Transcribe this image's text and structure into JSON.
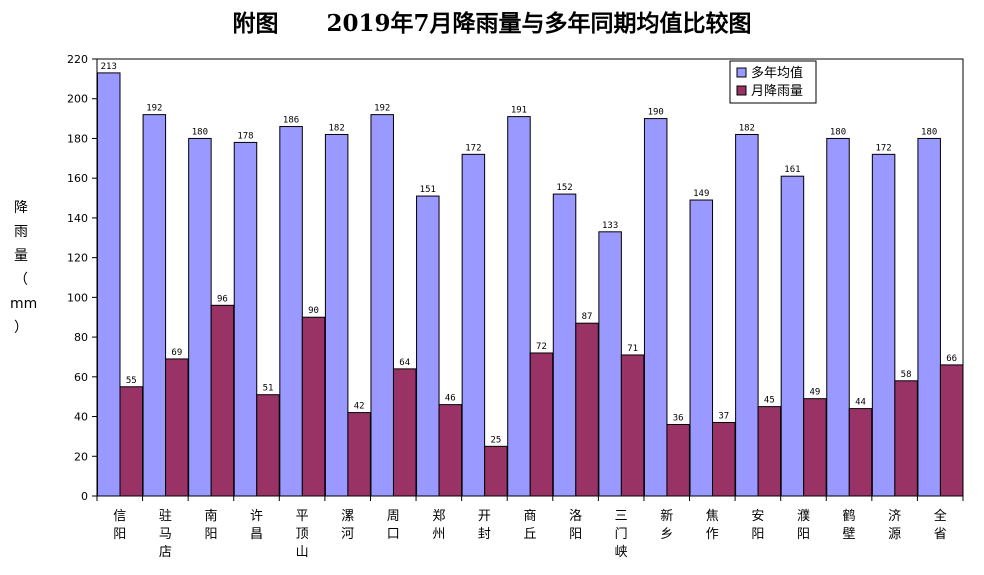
{
  "chart_data": {
    "type": "bar",
    "title": "附图      2019年7月降雨量与多年同期均值比较图",
    "ylabel_chars": [
      "降",
      "雨",
      "量",
      "（",
      "mm",
      "）"
    ],
    "xlabel": "",
    "ylim": [
      0,
      220
    ],
    "yticks": [
      0,
      20,
      40,
      60,
      80,
      100,
      120,
      140,
      160,
      180,
      200,
      220
    ],
    "grid": false,
    "legend_position": "top-right",
    "categories": [
      "信阳",
      "驻马店",
      "南阳",
      "许昌",
      "平顶山",
      "漯河",
      "周口",
      "郑州",
      "开封",
      "商丘",
      "洛阳",
      "三门峡",
      "新乡",
      "焦作",
      "安阳",
      "濮阳",
      "鹤壁",
      "济源",
      "全省"
    ],
    "series": [
      {
        "name": "多年均值",
        "color": "#9999ff",
        "values": [
          213,
          192,
          180,
          178,
          186,
          182,
          192,
          151,
          172,
          191,
          152,
          133,
          190,
          149,
          182,
          161,
          180,
          172,
          180
        ]
      },
      {
        "name": "月降雨量",
        "color": "#993366",
        "values": [
          55,
          69,
          96,
          51,
          90,
          42,
          64,
          46,
          25,
          72,
          87,
          71,
          36,
          37,
          45,
          49,
          44,
          58,
          66
        ]
      }
    ]
  }
}
